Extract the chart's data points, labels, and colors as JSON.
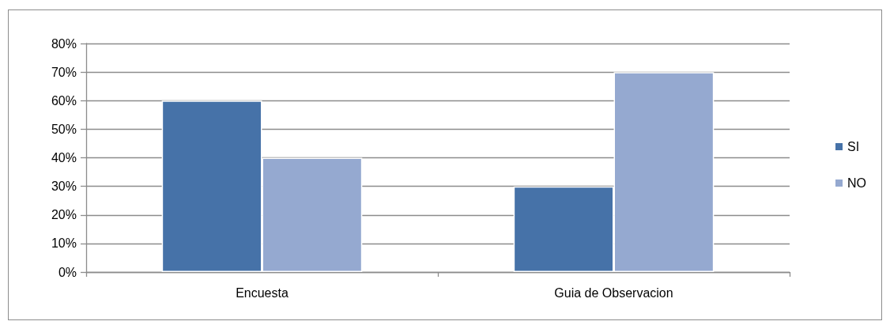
{
  "chart_data": {
    "type": "bar",
    "categories": [
      "Encuesta",
      "Guia de Observacion"
    ],
    "series": [
      {
        "name": "SI",
        "color": "#4672a8",
        "values": [
          60,
          30
        ]
      },
      {
        "name": "NO",
        "color": "#95a9d0",
        "values": [
          40,
          70
        ]
      }
    ],
    "ylim": [
      0,
      80
    ],
    "yticks": [
      {
        "value": 0,
        "label": "0%"
      },
      {
        "value": 10,
        "label": "10%"
      },
      {
        "value": 20,
        "label": "20%"
      },
      {
        "value": 30,
        "label": "30%"
      },
      {
        "value": 40,
        "label": "40%"
      },
      {
        "value": 50,
        "label": "50%"
      },
      {
        "value": 60,
        "label": "60%"
      },
      {
        "value": 70,
        "label": "70%"
      },
      {
        "value": 80,
        "label": "80%"
      }
    ],
    "grid": "y",
    "legend": "right"
  }
}
